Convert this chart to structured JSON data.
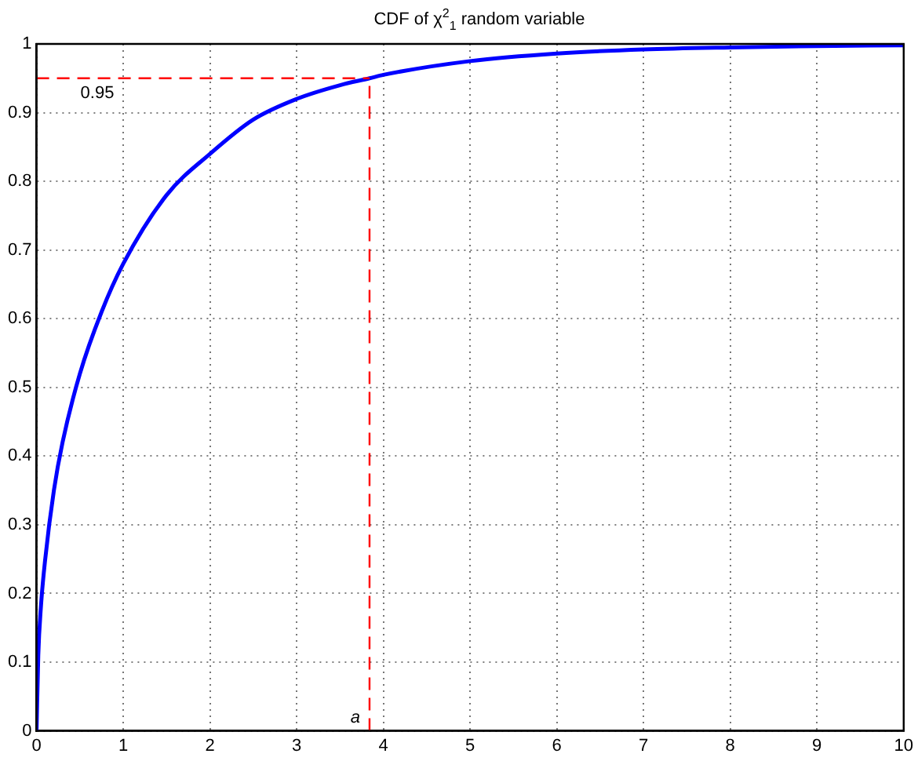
{
  "chart_data": {
    "type": "line",
    "title": "CDF of χ$^{2}$$_{1}$ random variable",
    "x": [
      0,
      0.02,
      0.05,
      0.1,
      0.2,
      0.3,
      0.5,
      0.75,
      1,
      1.5,
      2,
      2.5,
      3,
      3.5,
      3.84,
      4,
      5,
      6,
      7,
      8,
      9,
      10
    ],
    "series": [
      {
        "color": "#0000ff",
        "values": [
          0,
          0.11,
          0.18,
          0.25,
          0.35,
          0.42,
          0.52,
          0.61,
          0.68,
          0.78,
          0.84,
          0.89,
          0.92,
          0.94,
          0.95,
          0.955,
          0.975,
          0.986,
          0.992,
          0.995,
          0.997,
          0.998
        ]
      }
    ],
    "xlim": [
      0,
      10
    ],
    "xticks": [
      0,
      1,
      2,
      3,
      4,
      5,
      6,
      7,
      8,
      9,
      10
    ],
    "ylim": [
      0,
      1
    ],
    "yticks": [
      0,
      0.1,
      0.2,
      0.3,
      0.4,
      0.5,
      0.6,
      0.7,
      0.8,
      0.9,
      1
    ],
    "grid": true,
    "legend": false,
    "marker": "none",
    "line_style": "solid",
    "ref_lines": [
      {
        "axis": "y",
        "value": 0.95,
        "label": "0.95",
        "color": "#ff0000",
        "line_style": "dashed"
      },
      {
        "axis": "x",
        "value": 3.84,
        "label": "a",
        "color": "#ff0000",
        "line_style": "dashed"
      }
    ]
  }
}
